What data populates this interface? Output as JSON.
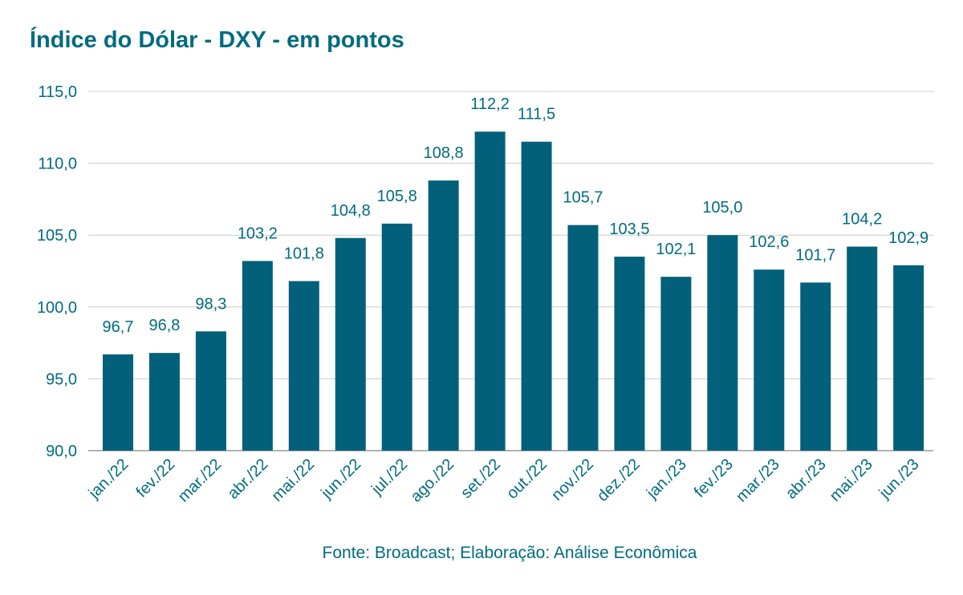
{
  "chart_data": {
    "type": "bar",
    "title": "Índice do Dólar - DXY - em pontos",
    "source": "Fonte: Broadcast; Elaboração: Análise Econômica",
    "categories": [
      "jan./22",
      "fev./22",
      "mar./22",
      "abr./22",
      "mai./22",
      "jun./22",
      "jul./22",
      "ago./22",
      "set./22",
      "out./22",
      "nov./22",
      "dez./22",
      "jan./23",
      "fev./23",
      "mar./23",
      "abr./23",
      "mai./23",
      "jun./23"
    ],
    "values": [
      96.7,
      96.8,
      98.3,
      103.2,
      101.8,
      104.8,
      105.8,
      108.8,
      112.2,
      111.5,
      105.7,
      103.5,
      102.1,
      105.0,
      102.6,
      101.7,
      104.2,
      102.9
    ],
    "value_labels": [
      "96,7",
      "96,8",
      "98,3",
      "103,2",
      "101,8",
      "104,8",
      "105,8",
      "108,8",
      "112,2",
      "111,5",
      "105,7",
      "103,5",
      "102,1",
      "105,0",
      "102,6",
      "101,7",
      "104,2",
      "102,9"
    ],
    "y_ticks": [
      90,
      95,
      100,
      105,
      110,
      115
    ],
    "y_tick_labels": [
      "90,0",
      "95,0",
      "100,0",
      "105,0",
      "110,0",
      "115,0"
    ],
    "ylim": [
      90,
      115
    ],
    "xlabel": "",
    "ylabel": "",
    "grid": true,
    "legend": "none",
    "colors": {
      "bar": "#02607a",
      "text": "#006b80",
      "grid": "#cccccc"
    }
  }
}
